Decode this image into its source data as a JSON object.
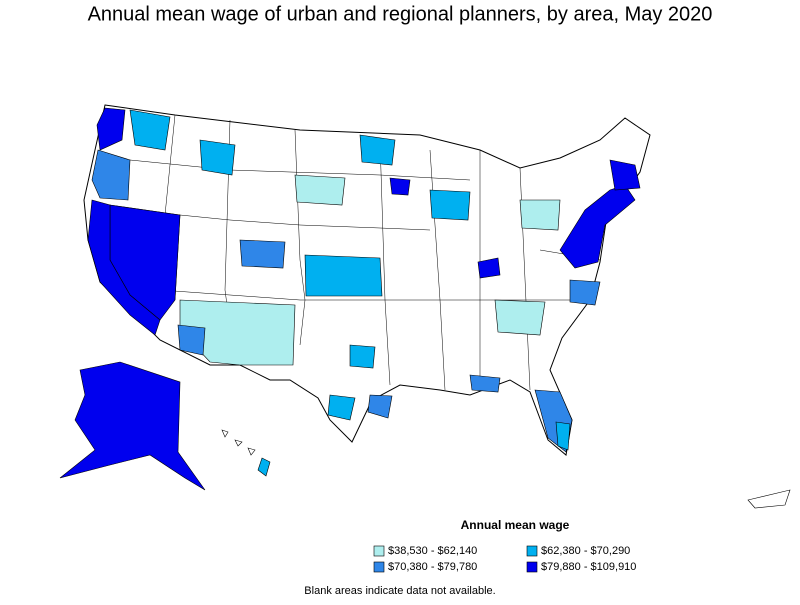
{
  "title": "Annual mean wage of urban and regional planners, by area, May 2020",
  "legend": {
    "title": "Annual mean wage",
    "items": [
      {
        "label": "$38,530 - $62,140",
        "color": "#aeeeee"
      },
      {
        "label": "$62,380 - $70,290",
        "color": "#00b0f0"
      },
      {
        "label": "$70,380 - $79,780",
        "color": "#2f86e8"
      },
      {
        "label": "$79,880 - $109,910",
        "color": "#0000ee"
      }
    ]
  },
  "footnote": "Blank areas indicate data not available."
}
